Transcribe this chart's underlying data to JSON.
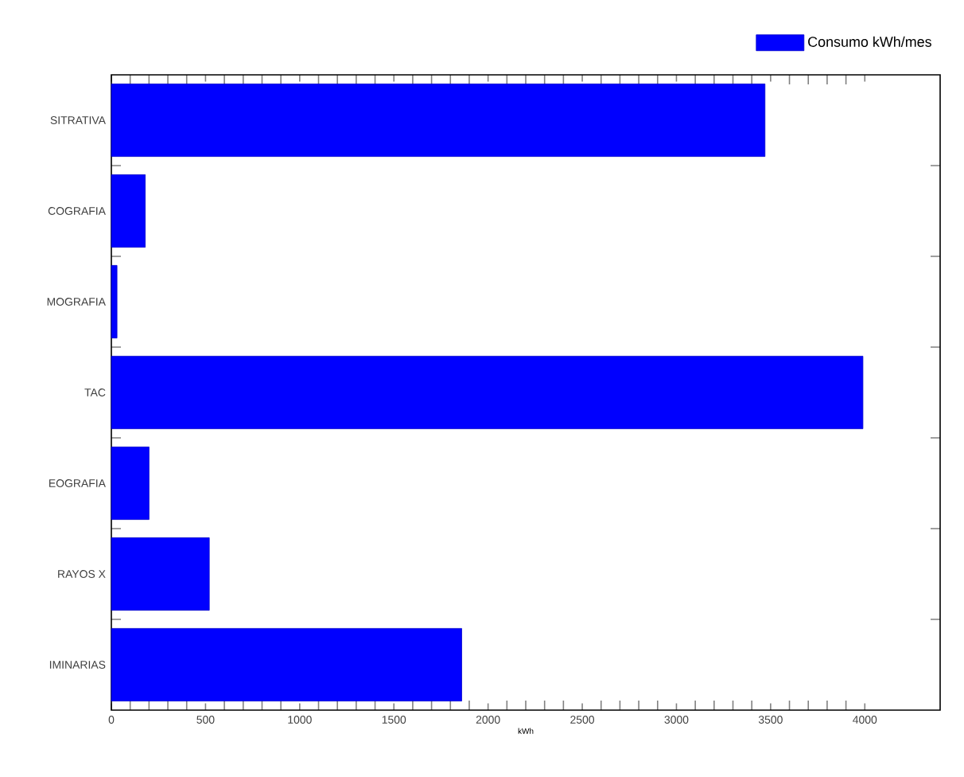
{
  "chart_data": {
    "type": "bar",
    "orientation": "horizontal",
    "xlabel": "kWh",
    "categories": [
      "SITRATIVA",
      "COGRAFIA",
      "MOGRAFIA",
      "TAC",
      "EOGRAFIA",
      "RAYOS X",
      "IMINARIAS"
    ],
    "series": [
      {
        "name": "Consumo kWh/mes",
        "color": "#0000ff",
        "values": [
          3470,
          180,
          30,
          3990,
          200,
          520,
          1860
        ]
      }
    ],
    "xlim": [
      0,
      4400
    ],
    "xticks": [
      0,
      500,
      1000,
      1500,
      2000,
      2500,
      3000,
      3500,
      4000
    ],
    "legend": "top right",
    "grid": false
  }
}
